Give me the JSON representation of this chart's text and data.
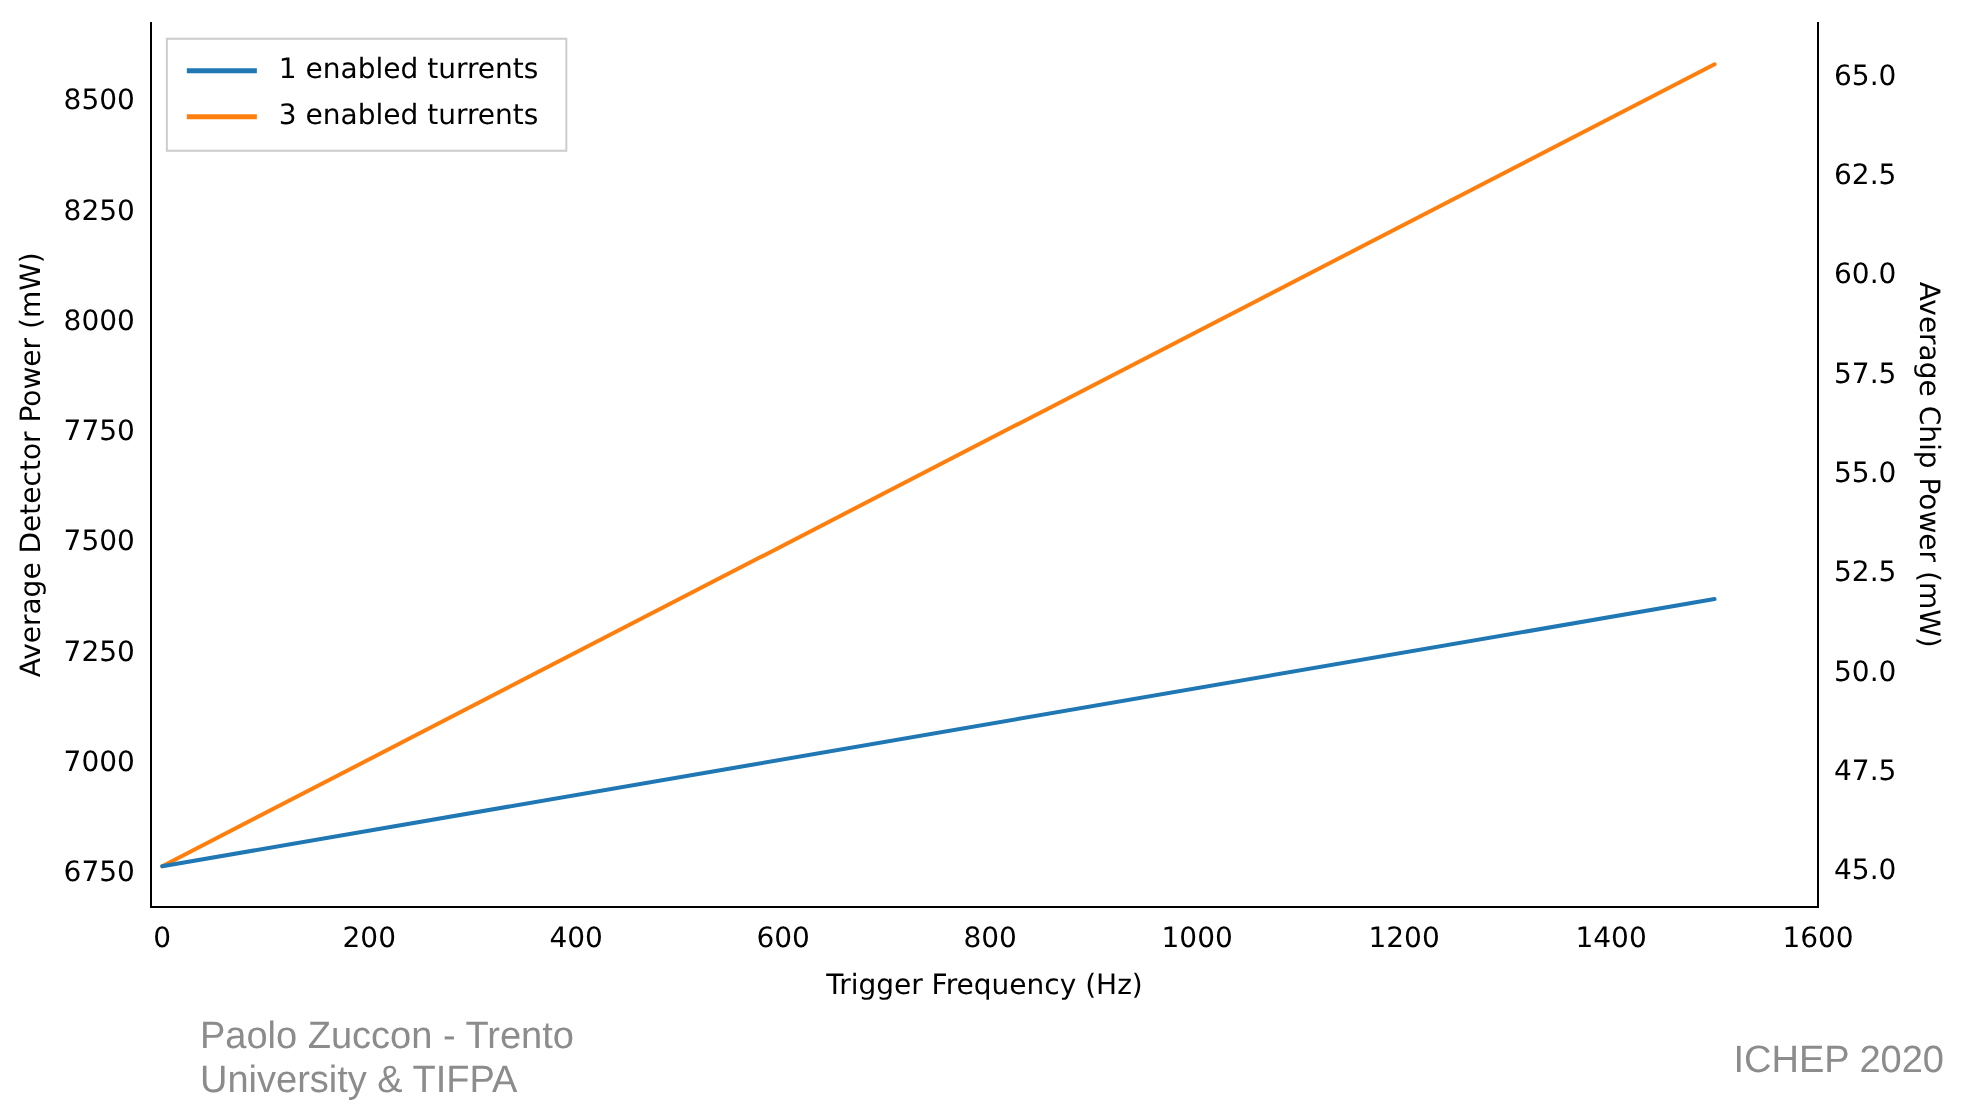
{
  "chart_data": {
    "type": "line",
    "xlabel": "Trigger Frequency (Hz)",
    "ylabel": "Average Detector Power (mW)",
    "y2label": "Average Chip Power (mW)",
    "x": [
      0,
      1500
    ],
    "series": [
      {
        "name": "1 enabled turrents",
        "color": "#1f77b4",
        "values": [
          6767,
          7373
        ]
      },
      {
        "name": "3 enabled turrents",
        "color": "#ff7f0e",
        "values": [
          6767,
          8586
        ]
      }
    ],
    "xlim": [
      -11,
      1600
    ],
    "xticks": [
      0,
      200,
      400,
      600,
      800,
      1000,
      1200,
      1400,
      1600
    ],
    "ylim": [
      6675,
      8680
    ],
    "yticks": [
      6750,
      7000,
      7250,
      7500,
      7750,
      8000,
      8250,
      8500
    ],
    "y2lim": [
      44.12,
      66.38
    ],
    "y2ticks": [
      {
        "value": 45,
        "label": "45.0"
      },
      {
        "value": 47.5,
        "label": "47.5"
      },
      {
        "value": 50,
        "label": "50.0"
      },
      {
        "value": 52.5,
        "label": "52.5"
      },
      {
        "value": 55,
        "label": "55.0"
      },
      {
        "value": 57.5,
        "label": "57.5"
      },
      {
        "value": 60,
        "label": "60.0"
      },
      {
        "value": 62.5,
        "label": "62.5"
      },
      {
        "value": 65,
        "label": "65.0"
      }
    ],
    "grid": false,
    "legend": "top left",
    "marker": "none",
    "line_style": "solid",
    "annotations": [
      "Paolo Zuccon - Trento University & TIFPA",
      "ICHEP 2020"
    ]
  }
}
